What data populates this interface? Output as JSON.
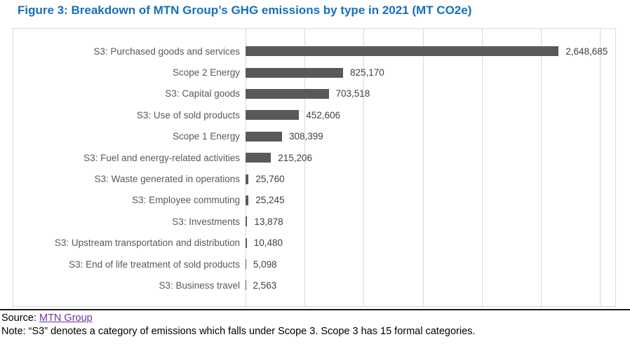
{
  "title": "Figure 3: Breakdown of MTN Group’s GHG emissions by type in 2021 (MT CO2e)",
  "chart_data": {
    "type": "bar",
    "orientation": "horizontal",
    "title": "Figure 3: Breakdown of MTN Group’s GHG emissions by type in 2021 (MT CO2e)",
    "categories": [
      "S3: Purchased goods and services",
      "Scope 2 Energy",
      "S3: Capital goods",
      "S3: Use of sold products",
      "Scope 1 Energy",
      "S3: Fuel and energy-related activities",
      "S3: Waste generated in operations",
      "S3: Employee commuting",
      "S3: Investments",
      "S3: Upstream transportation and distribution",
      "S3: End of life treatment of sold products",
      "S3: Business travel"
    ],
    "values": [
      2648685,
      825170,
      703518,
      452606,
      308399,
      215206,
      25760,
      25245,
      13878,
      10480,
      5098,
      2563
    ],
    "value_labels": [
      "2,648,685",
      "825,170",
      "703,518",
      "452,606",
      "308,399",
      "215,206",
      "25,760",
      "25,245",
      "13,878",
      "10,480",
      "5,098",
      "2,563"
    ],
    "xlabel": "",
    "ylabel": "",
    "xlim": [
      0,
      3128000
    ],
    "gridline_interval": 500000,
    "grid": true,
    "legend": "none",
    "bar_color": "#595959"
  },
  "footer": {
    "source_prefix": "Source: ",
    "source_link": "MTN Group",
    "note": "Note: “S3” denotes a category of emissions which falls under Scope 3. Scope 3 has 15 formal categories."
  },
  "colors": {
    "title": "#1570BC",
    "bar": "#595959",
    "grid": "#D9D9D9",
    "category_label": "#595959",
    "value_label": "#3F3F3F",
    "link": "#7030A0"
  }
}
